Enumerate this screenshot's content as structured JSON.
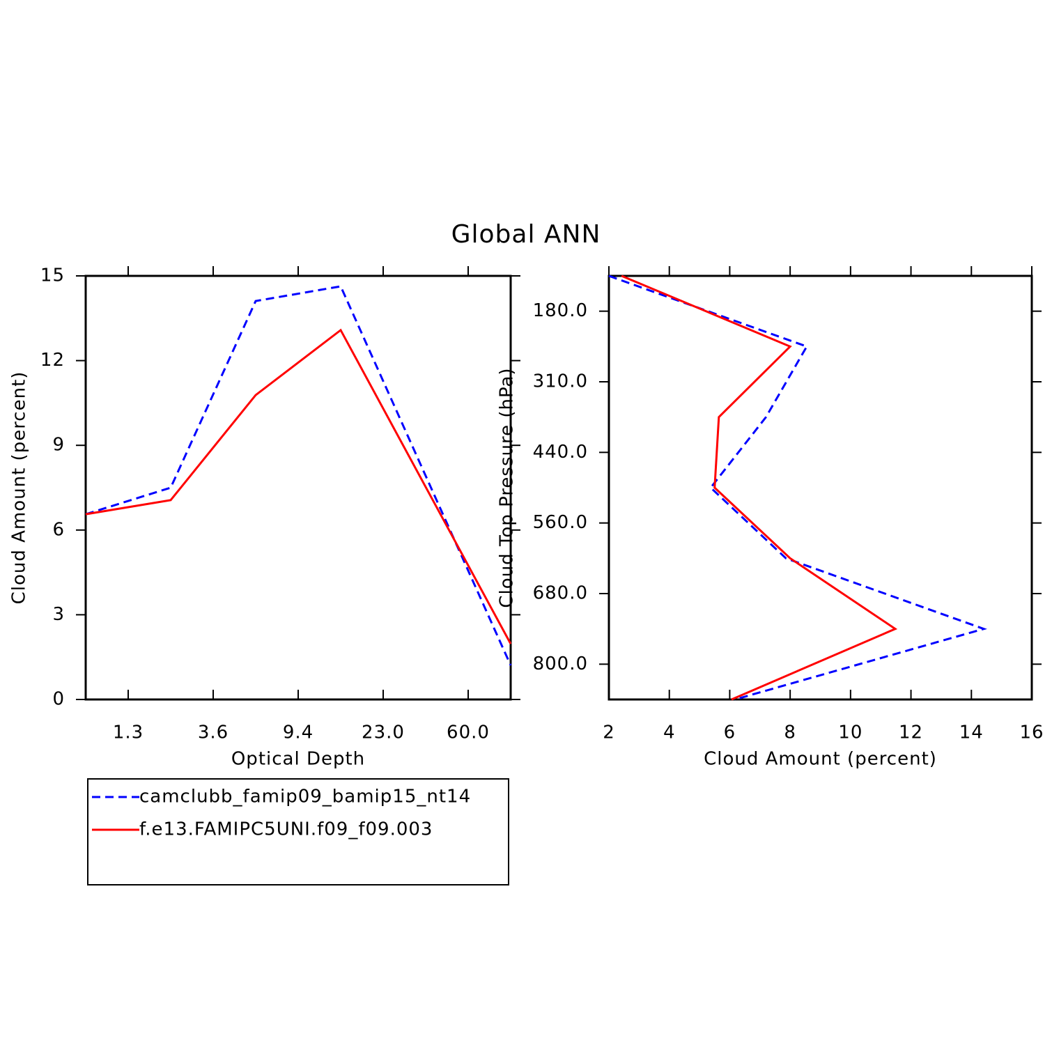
{
  "title": "Global ANN",
  "chart_data": [
    {
      "type": "line",
      "orientation": "horizontal",
      "xlabel": "Optical Depth",
      "ylabel": "Cloud Amount (percent)",
      "x": [
        0,
        2,
        4,
        6,
        10
      ],
      "xlim": [
        0,
        10
      ],
      "xticks": [
        {
          "value": 1,
          "label": "1.3"
        },
        {
          "value": 3,
          "label": "3.6"
        },
        {
          "value": 5,
          "label": "9.4"
        },
        {
          "value": 7,
          "label": "23.0"
        },
        {
          "value": 9,
          "label": "60.0"
        }
      ],
      "ylim": [
        0,
        15
      ],
      "yticks": [
        0,
        3,
        6,
        9,
        12,
        15
      ],
      "legend": "below",
      "series": [
        {
          "name": "camclubb_famip09_bamip15_nt14",
          "color": "#0000ff",
          "dash": true,
          "values": [
            6.56,
            7.5,
            14.11,
            14.63,
            1.21
          ]
        },
        {
          "name": "f.e13.FAMIPC5UNI.f09_f09.003",
          "color": "#ff0000",
          "dash": false,
          "values": [
            6.56,
            7.06,
            10.78,
            13.08,
            1.97
          ]
        }
      ]
    },
    {
      "type": "line",
      "orientation": "vertical",
      "xlabel": "Cloud Amount (percent)",
      "ylabel": "Cloud Top Pressure (hPa)",
      "y": [
        0,
        2,
        4,
        6,
        8,
        10,
        12
      ],
      "xlim": [
        2,
        16
      ],
      "xticks": [
        2,
        4,
        6,
        8,
        10,
        12,
        14,
        16
      ],
      "ylim": [
        12,
        0
      ],
      "yticks": [
        {
          "value": 1,
          "label": "180.0"
        },
        {
          "value": 3,
          "label": "310.0"
        },
        {
          "value": 5,
          "label": "440.0"
        },
        {
          "value": 7,
          "label": "560.0"
        },
        {
          "value": 9,
          "label": "680.0"
        },
        {
          "value": 11,
          "label": "800.0"
        }
      ],
      "series": [
        {
          "name": "camclubb_famip09_bamip15_nt14",
          "color": "#0000ff",
          "dash": true,
          "values": [
            2.0,
            8.55,
            7.2,
            5.37,
            7.86,
            14.41,
            6.17
          ]
        },
        {
          "name": "f.e13.FAMIPC5UNI.f09_f09.003",
          "color": "#ff0000",
          "dash": false,
          "values": [
            2.42,
            8.0,
            5.64,
            5.5,
            8.0,
            11.48,
            6.06
          ]
        }
      ]
    }
  ]
}
